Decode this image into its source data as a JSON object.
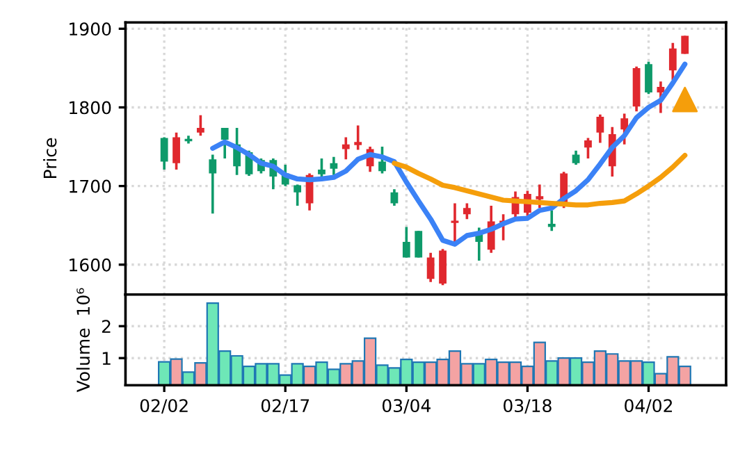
{
  "chart_data": [
    {
      "type": "candlestick",
      "ylabel": "Price",
      "tick_labels": "y",
      "grid": true,
      "categories": [
        null,
        null,
        null,
        null,
        null,
        null,
        null,
        null,
        null,
        null,
        null,
        null,
        null,
        null,
        null,
        null,
        null,
        null,
        null,
        null,
        null,
        null,
        null,
        null,
        null,
        null,
        null,
        null,
        null,
        null,
        null,
        null,
        null,
        null,
        null,
        null,
        null,
        null,
        null,
        null,
        null,
        null,
        null,
        null
      ],
      "ylim": [
        1562,
        1908
      ],
      "yticks": [
        1600,
        1700,
        1800,
        1900
      ],
      "ohlc": [
        [
          1761,
          1762,
          1721,
          1731
        ],
        [
          1729,
          1768,
          1721,
          1762
        ],
        [
          1760,
          1764,
          1754,
          1757
        ],
        [
          1768,
          1790,
          1764,
          1774
        ],
        [
          1734,
          1740,
          1665,
          1716
        ],
        [
          1774,
          1774,
          1735,
          1759
        ],
        [
          1753,
          1774,
          1714,
          1725
        ],
        [
          1743,
          1745,
          1713,
          1715
        ],
        [
          1733,
          1735,
          1716,
          1719
        ],
        [
          1733,
          1735,
          1696,
          1712
        ],
        [
          1716,
          1727,
          1700,
          1702
        ],
        [
          1701,
          1702,
          1675,
          1692
        ],
        [
          1678,
          1716,
          1669,
          1714
        ],
        [
          1721,
          1735,
          1708,
          1715
        ],
        [
          1729,
          1737,
          1714,
          1722
        ],
        [
          1747,
          1762,
          1734,
          1753
        ],
        [
          1752,
          1777,
          1746,
          1756
        ],
        [
          1725,
          1750,
          1718,
          1747
        ],
        [
          1731,
          1750,
          1716,
          1719
        ],
        [
          1692,
          1696,
          1675,
          1678
        ],
        [
          1629,
          1648,
          1609,
          1609
        ],
        [
          1643,
          1643,
          1609,
          1609
        ],
        [
          1582,
          1615,
          1578,
          1609
        ],
        [
          1576,
          1620,
          1574,
          1618
        ],
        [
          1653,
          1678,
          1629,
          1656
        ],
        [
          1664,
          1678,
          1658,
          1672
        ],
        [
          1641,
          1647,
          1605,
          1629
        ],
        [
          1619,
          1675,
          1615,
          1655
        ],
        [
          1652,
          1664,
          1631,
          1656
        ],
        [
          1664,
          1693,
          1658,
          1686
        ],
        [
          1666,
          1694,
          1662,
          1690
        ],
        [
          1683,
          1702,
          1672,
          1687
        ],
        [
          1652,
          1669,
          1643,
          1648
        ],
        [
          1674,
          1718,
          1672,
          1716
        ],
        [
          1740,
          1745,
          1727,
          1729
        ],
        [
          1749,
          1761,
          1735,
          1758
        ],
        [
          1768,
          1791,
          1755,
          1788
        ],
        [
          1725,
          1775,
          1712,
          1766
        ],
        [
          1772,
          1792,
          1753,
          1786
        ],
        [
          1801,
          1852,
          1795,
          1850
        ],
        [
          1855,
          1858,
          1817,
          1819
        ],
        [
          1819,
          1833,
          1793,
          1826
        ],
        [
          1847,
          1882,
          1835,
          1875
        ],
        [
          1868,
          1891,
          1868,
          1891
        ]
      ],
      "colors": [
        "#0e9a6a",
        "#e0282e",
        "#0e9a6a",
        "#e0282e",
        "#0e9a6a",
        "#0e9a6a",
        "#0e9a6a",
        "#0e9a6a",
        "#0e9a6a",
        "#0e9a6a",
        "#0e9a6a",
        "#0e9a6a",
        "#e0282e",
        "#0e9a6a",
        "#0e9a6a",
        "#e0282e",
        "#e0282e",
        "#e0282e",
        "#0e9a6a",
        "#0e9a6a",
        "#0e9a6a",
        "#0e9a6a",
        "#e0282e",
        "#e0282e",
        "#e0282e",
        "#e0282e",
        "#0e9a6a",
        "#e0282e",
        "#e0282e",
        "#e0282e",
        "#e0282e",
        "#e0282e",
        "#0e9a6a",
        "#e0282e",
        "#0e9a6a",
        "#e0282e",
        "#e0282e",
        "#e0282e",
        "#e0282e",
        "#e0282e",
        "#0e9a6a",
        "#e0282e",
        "#e0282e",
        "#e0282e"
      ],
      "series": [
        {
          "type": "line",
          "color": "#3b82f6",
          "values": [
            null,
            null,
            null,
            null,
            1748,
            1756,
            1749,
            1740,
            1729,
            1725,
            1714,
            1709,
            1708,
            1709,
            1711,
            1719,
            1734,
            1740,
            1737,
            1731,
            1705,
            1681,
            1658,
            1631,
            1626,
            1637,
            1640,
            1645,
            1652,
            1658,
            1659,
            1669,
            1672,
            1684,
            1694,
            1708,
            1728,
            1749,
            1764,
            1787,
            1800,
            1809,
            1831,
            1855
          ]
        },
        {
          "type": "line",
          "color": "#f59e0b",
          "values": [
            null,
            null,
            null,
            null,
            null,
            null,
            null,
            null,
            null,
            null,
            null,
            null,
            null,
            null,
            null,
            null,
            null,
            null,
            null,
            1729,
            1724,
            1716,
            1709,
            1701,
            1698,
            1694,
            1690,
            1686,
            1682,
            1681,
            1680,
            1679,
            1678,
            1677,
            1676,
            1676,
            1678,
            1679,
            1681,
            1690,
            1700,
            1711,
            1724,
            1739
          ]
        },
        {
          "type": "scatter",
          "marker": "triangle",
          "color": "#f59e0b",
          "values": [
            null,
            null,
            null,
            null,
            null,
            null,
            null,
            null,
            null,
            null,
            null,
            null,
            null,
            null,
            null,
            null,
            null,
            null,
            null,
            null,
            null,
            null,
            null,
            null,
            null,
            null,
            null,
            null,
            null,
            null,
            null,
            null,
            null,
            null,
            null,
            null,
            null,
            null,
            null,
            null,
            null,
            null,
            null,
            1810
          ]
        }
      ]
    },
    {
      "type": "bar",
      "ylabel": "Volume  10⁶",
      "grid": true,
      "categories": [
        "02/02",
        null,
        null,
        null,
        null,
        null,
        null,
        null,
        null,
        null,
        "02/17",
        null,
        null,
        null,
        null,
        null,
        null,
        null,
        null,
        null,
        "03/04",
        null,
        null,
        null,
        null,
        null,
        null,
        null,
        null,
        null,
        "03/18",
        null,
        null,
        null,
        null,
        null,
        null,
        null,
        null,
        null,
        "04/02",
        null,
        null,
        null
      ],
      "ylim": [
        0.15,
        2.99
      ],
      "yticks": [
        1,
        2
      ],
      "values": [
        0.88,
        0.97,
        0.56,
        0.85,
        2.72,
        1.22,
        1.07,
        0.74,
        0.82,
        0.82,
        0.47,
        0.82,
        0.74,
        0.87,
        0.65,
        0.82,
        0.91,
        1.62,
        0.78,
        0.69,
        0.96,
        0.87,
        0.87,
        0.96,
        1.22,
        0.82,
        0.82,
        0.96,
        0.87,
        0.87,
        0.74,
        1.49,
        0.91,
        1.0,
        1.0,
        0.87,
        1.22,
        1.13,
        0.91,
        0.91,
        0.87,
        0.51,
        1.04,
        0.74
      ],
      "colors": [
        "#6ee7b7",
        "#f4a3a3",
        "#6ee7b7",
        "#f4a3a3",
        "#6ee7b7",
        "#6ee7b7",
        "#6ee7b7",
        "#6ee7b7",
        "#6ee7b7",
        "#6ee7b7",
        "#6ee7b7",
        "#6ee7b7",
        "#f4a3a3",
        "#6ee7b7",
        "#6ee7b7",
        "#f4a3a3",
        "#f4a3a3",
        "#f4a3a3",
        "#6ee7b7",
        "#6ee7b7",
        "#6ee7b7",
        "#6ee7b7",
        "#f4a3a3",
        "#f4a3a3",
        "#f4a3a3",
        "#f4a3a3",
        "#6ee7b7",
        "#f4a3a3",
        "#f4a3a3",
        "#f4a3a3",
        "#f4a3a3",
        "#f4a3a3",
        "#6ee7b7",
        "#f4a3a3",
        "#6ee7b7",
        "#f4a3a3",
        "#f4a3a3",
        "#f4a3a3",
        "#f4a3a3",
        "#f4a3a3",
        "#6ee7b7",
        "#f4a3a3",
        "#f4a3a3",
        "#f4a3a3"
      ]
    }
  ]
}
